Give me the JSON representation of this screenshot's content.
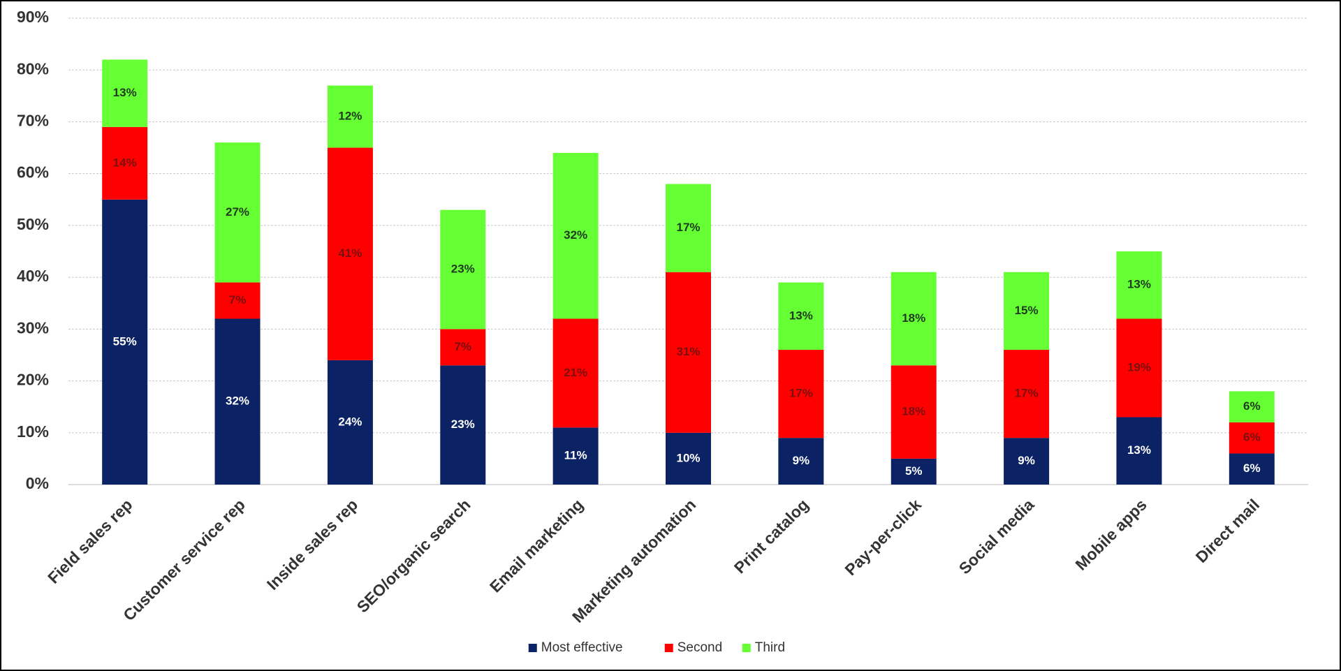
{
  "chart_data": {
    "type": "stacked_bar",
    "categories": [
      "Field sales rep",
      "Customer service rep",
      "Inside sales rep",
      "SEO/organic search",
      "Email marketing",
      "Marketing automation",
      "Print catalog",
      "Pay-per-click",
      "Social media",
      "Mobile apps",
      "Direct mail"
    ],
    "series": [
      {
        "name": "Most effective",
        "color": "#0b2364",
        "values": [
          55,
          32,
          24,
          23,
          11,
          10,
          9,
          5,
          9,
          13,
          6
        ],
        "value_labels": [
          "55%",
          "32%",
          "24%",
          "23%",
          "11%",
          "10%",
          "9%",
          "5%",
          "9%",
          "13%",
          "6%"
        ]
      },
      {
        "name": "Second",
        "color": "#ff0000",
        "values": [
          14,
          7,
          41,
          7,
          21,
          31,
          17,
          18,
          17,
          19,
          6
        ],
        "value_labels": [
          "14%",
          "7%",
          "41%",
          "7%",
          "21%",
          "31%",
          "17%",
          "18%",
          "17%",
          "19%",
          "6%"
        ]
      },
      {
        "name": "Third",
        "color": "#66ff33",
        "values": [
          13,
          27,
          12,
          23,
          32,
          17,
          13,
          18,
          15,
          13,
          6
        ],
        "value_labels": [
          "13%",
          "27%",
          "12%",
          "23%",
          "32%",
          "17%",
          "13%",
          "18%",
          "15%",
          "13%",
          "6%"
        ]
      }
    ],
    "ylim": [
      0,
      90
    ],
    "yticks": [
      {
        "value": 0,
        "label": "0%"
      },
      {
        "value": 10,
        "label": "10%"
      },
      {
        "value": 20,
        "label": "20%"
      },
      {
        "value": 30,
        "label": "30%"
      },
      {
        "value": 40,
        "label": "40%"
      },
      {
        "value": 50,
        "label": "50%"
      },
      {
        "value": 60,
        "label": "60%"
      },
      {
        "value": 70,
        "label": "70%"
      },
      {
        "value": 80,
        "label": "80%"
      },
      {
        "value": 90,
        "label": "90%"
      }
    ],
    "grid": true,
    "legend": "bottom"
  }
}
